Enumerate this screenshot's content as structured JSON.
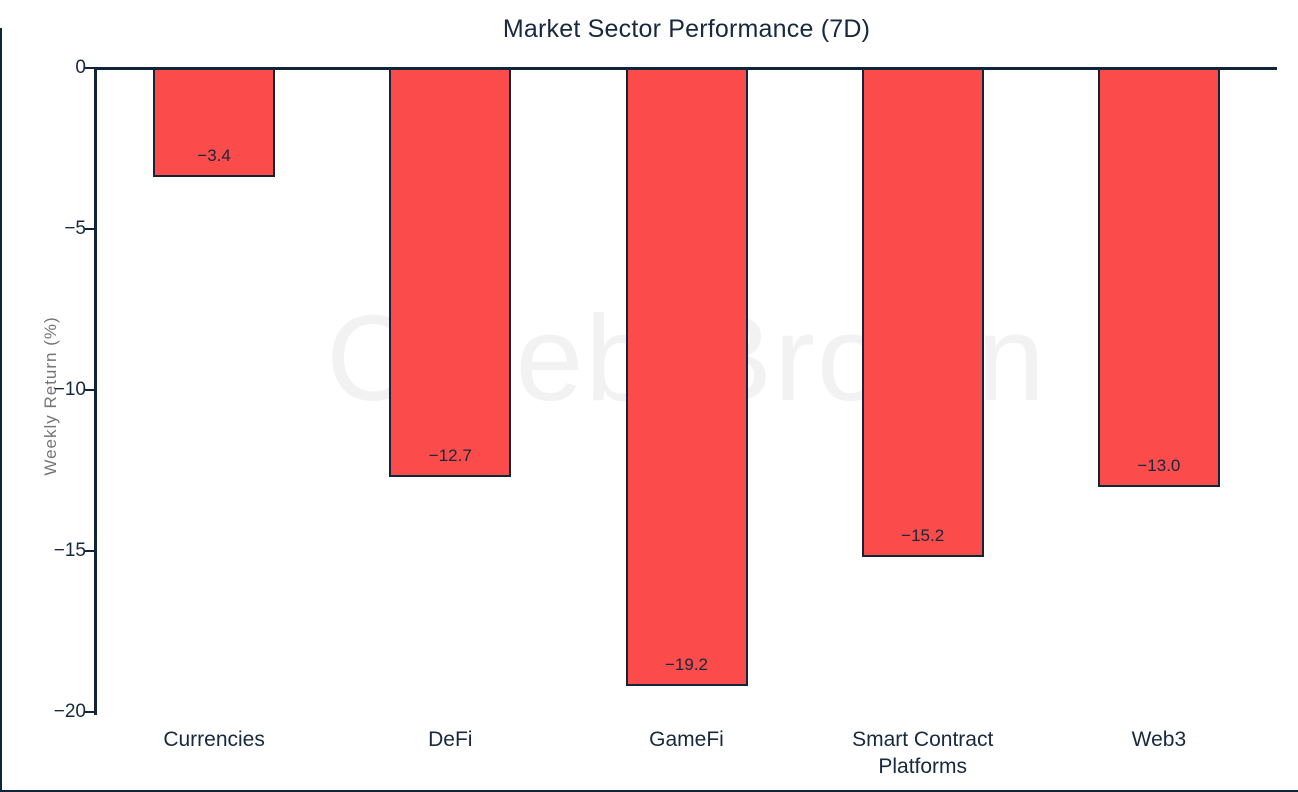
{
  "window": {
    "background": "#ffffff",
    "edge_color": "#10243a"
  },
  "chart_data": {
    "type": "bar",
    "title": "Market Sector Performance (7D)",
    "ylabel": "Weekly Return (%)",
    "xlabel": "",
    "categories": [
      "Currencies",
      "DeFi",
      "GameFi",
      "Smart Contract Platforms",
      "Web3"
    ],
    "values": [
      -3.4,
      -12.7,
      -19.2,
      -15.2,
      -13.0
    ],
    "bar_labels": [
      "−3.4",
      "−12.7",
      "−19.2",
      "−15.2",
      "−13.0"
    ],
    "yticks": [
      0,
      -5,
      -10,
      -15,
      -20
    ],
    "ytick_labels": [
      "0",
      "−5",
      "−10",
      "−15",
      "−20"
    ],
    "ylim": [
      -20,
      0
    ],
    "grid": false,
    "legend_position": "none",
    "bar_color": "#fb4b4b",
    "bar_edge_color": "#10243a",
    "text_color": "#16293e",
    "ylabel_color": "#757575",
    "watermark": "Caleb Brown",
    "watermark_color": "#f2f2f2"
  }
}
